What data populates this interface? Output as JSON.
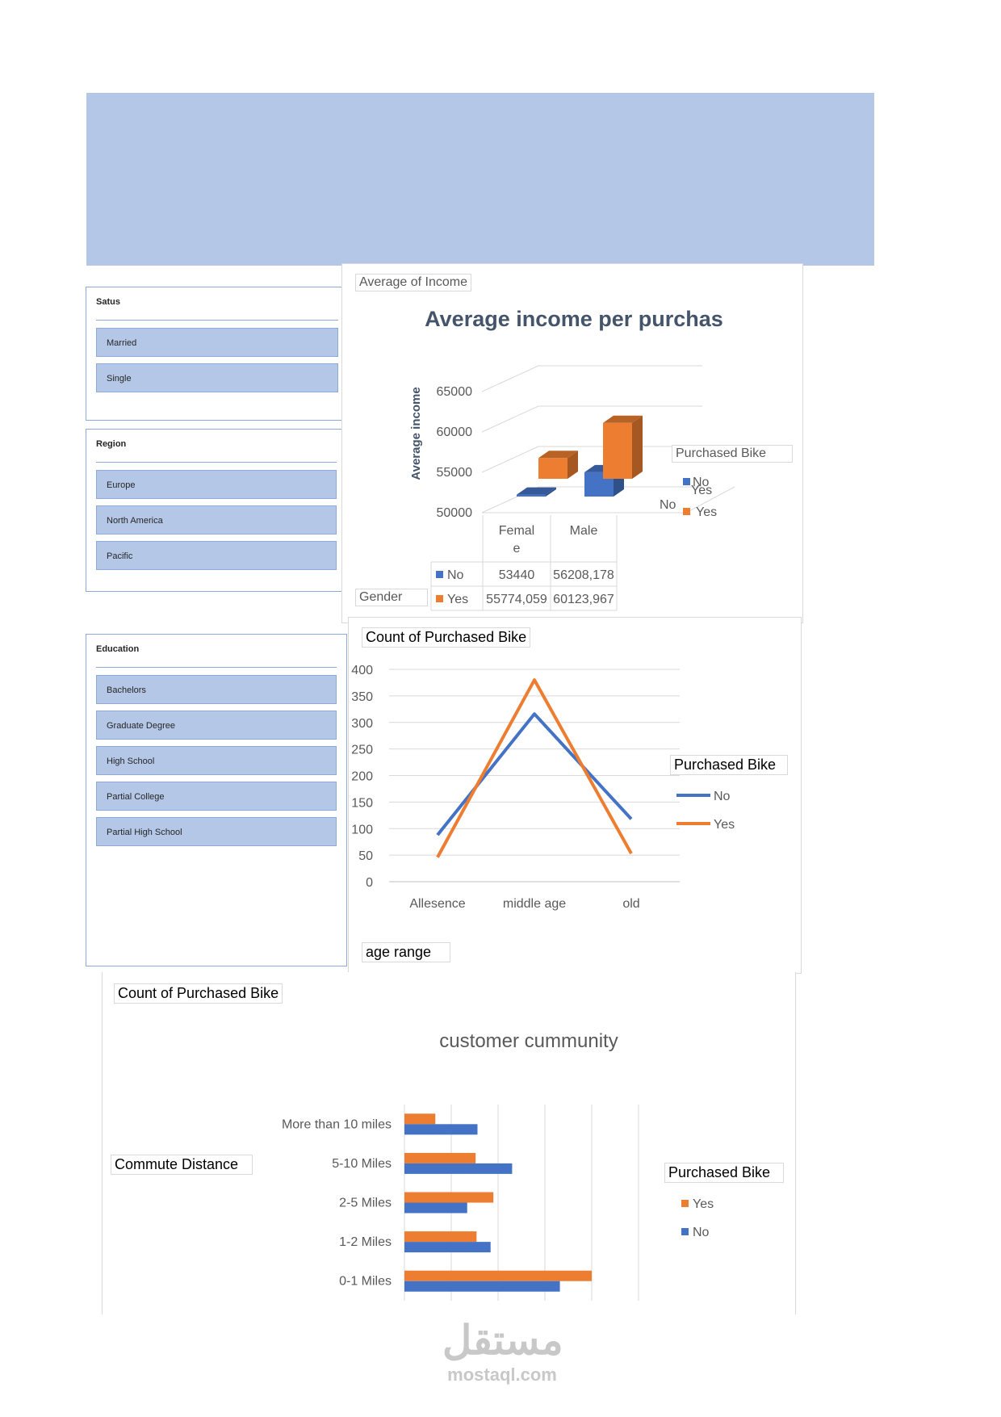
{
  "slicers": {
    "status": {
      "title": "Satus",
      "items": [
        "Married",
        "Single"
      ]
    },
    "region": {
      "title": "Region",
      "items": [
        "Europe",
        "North America",
        "Pacific"
      ]
    },
    "education": {
      "title": "Education",
      "items": [
        "Bachelors",
        "Graduate Degree",
        "High School",
        "Partial College",
        "Partial High School"
      ]
    }
  },
  "colors": {
    "no": "#4472c4",
    "yes": "#ed7d31",
    "banner": "#b4c7e7",
    "slicer_border": "#8eaadb"
  },
  "chart_data": [
    {
      "type": "bar",
      "variant": "3d-clustered-column",
      "field_button": "Average of Income",
      "title": "Average income per purchas",
      "ylabel": "Average income",
      "axis_field": "Gender",
      "legend_title": "Purchased Bike",
      "categories": [
        "Femal e",
        "Male"
      ],
      "ylim": [
        50000,
        65000
      ],
      "yticks": [
        "65000",
        "60000",
        "55000",
        "50000"
      ],
      "series": [
        {
          "name": "No",
          "values": [
            53440,
            56208.178
          ],
          "labels": [
            "53440",
            "56208,178"
          ]
        },
        {
          "name": "Yes",
          "values": [
            55774.059,
            60123.967
          ],
          "labels": [
            "55774,059",
            "60123,967"
          ]
        }
      ],
      "legend_position": "right",
      "legend_overlap_text": "Yes",
      "legend_stray_no": "No"
    },
    {
      "type": "line",
      "field_button": "Count of Purchased Bike",
      "axis_field": "age range",
      "legend_title": "Purchased Bike",
      "categories": [
        "Allesence",
        "middle age",
        "old"
      ],
      "ylim": [
        0,
        400
      ],
      "yticks": [
        "400",
        "350",
        "300",
        "250",
        "200",
        "150",
        "100",
        "50",
        "0"
      ],
      "series": [
        {
          "name": "No",
          "values": [
            88,
            316,
            118
          ]
        },
        {
          "name": "Yes",
          "values": [
            46,
            380,
            53
          ]
        }
      ],
      "grid": true,
      "legend_position": "right"
    },
    {
      "type": "bar",
      "orientation": "horizontal",
      "field_button": "Count of Purchased Bike",
      "title": "customer cummunity",
      "axis_field": "Commute Distance",
      "legend_title": "Purchased Bike",
      "categories": [
        "0-1 Miles",
        "1-2 Miles",
        "2-5 Miles",
        "5-10 Miles",
        "More than 10 miles"
      ],
      "xlim": [
        0,
        250
      ],
      "xticks": [
        "0",
        "50",
        "100",
        "150",
        "200",
        "250"
      ],
      "series": [
        {
          "name": "No",
          "values": [
            166,
            92,
            67,
            115,
            78
          ]
        },
        {
          "name": "Yes",
          "values": [
            200,
            77,
            95,
            76,
            33
          ]
        }
      ],
      "grid": true,
      "legend_position": "right"
    }
  ],
  "watermark": {
    "arabic": "مستقل",
    "latin": "mostaql.com"
  }
}
